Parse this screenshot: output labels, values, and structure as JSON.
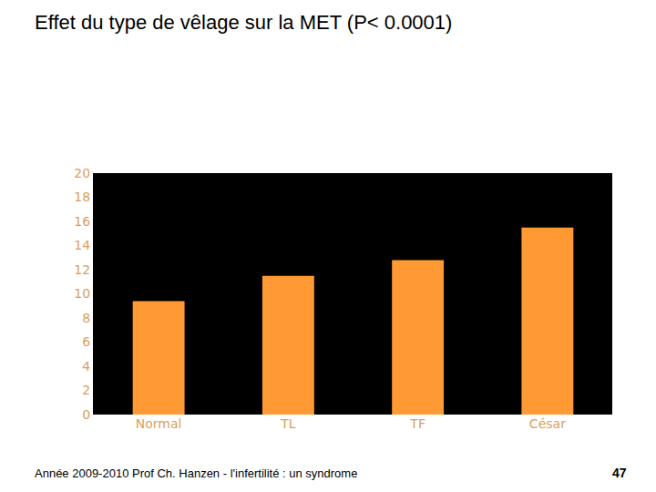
{
  "slide_title": "Effet du type de vêlage sur la MET (P< 0.0001)",
  "footer": {
    "text": "Année 2009-2010 Prof Ch. Hanzen - l'infertilité : un syndrome",
    "page": "47"
  },
  "chart_data": {
    "type": "bar",
    "categories": [
      "Normal",
      "TL",
      "TF",
      "César"
    ],
    "values": [
      9.4,
      11.5,
      12.8,
      15.5
    ],
    "color": "#ff9933",
    "ylim": [
      0,
      20
    ],
    "yticks": [
      0,
      2,
      4,
      6,
      8,
      10,
      12,
      14,
      16,
      18,
      20
    ],
    "grid": false
  }
}
